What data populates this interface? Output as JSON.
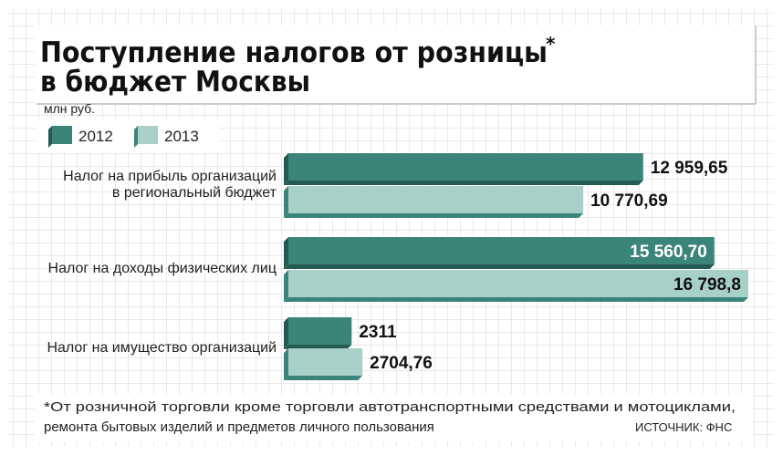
{
  "chart_data": {
    "type": "bar",
    "orientation": "horizontal",
    "title_line1": "Поступление налогов от розницы",
    "title_mark": "*",
    "title_line2": "в бюджет Москвы",
    "unit": "млн руб.",
    "categories": [
      [
        "Налог на прибыль организаций",
        "в региональный бюджет"
      ],
      [
        "Налог на доходы физических лиц"
      ],
      [
        "Налог на имущество организаций"
      ]
    ],
    "series": [
      {
        "name": "2012",
        "color": "#3a8479",
        "values": [
          12959.65,
          15560.7,
          2311
        ],
        "labels": [
          "12 959,65",
          "15 560,70",
          "2311"
        ]
      },
      {
        "name": "2013",
        "color": "#a8d0c8",
        "values": [
          10770.69,
          16798.8,
          2704.76
        ],
        "labels": [
          "10 770,69",
          "16 798,8",
          "2704,76"
        ]
      }
    ],
    "label_inside": [
      [
        false,
        true,
        false
      ],
      [
        false,
        true,
        false
      ]
    ],
    "legend_position": "top-left",
    "grid": true,
    "background": "grid-paper",
    "footnote_line1": "*От розничной торговли кроме торговли автотранспортными средствами и мотоциклами,",
    "footnote_line2": "ремонта бытовых изделий и предметов личного пользования",
    "source": "ИСТОЧНИК: ФНС"
  }
}
